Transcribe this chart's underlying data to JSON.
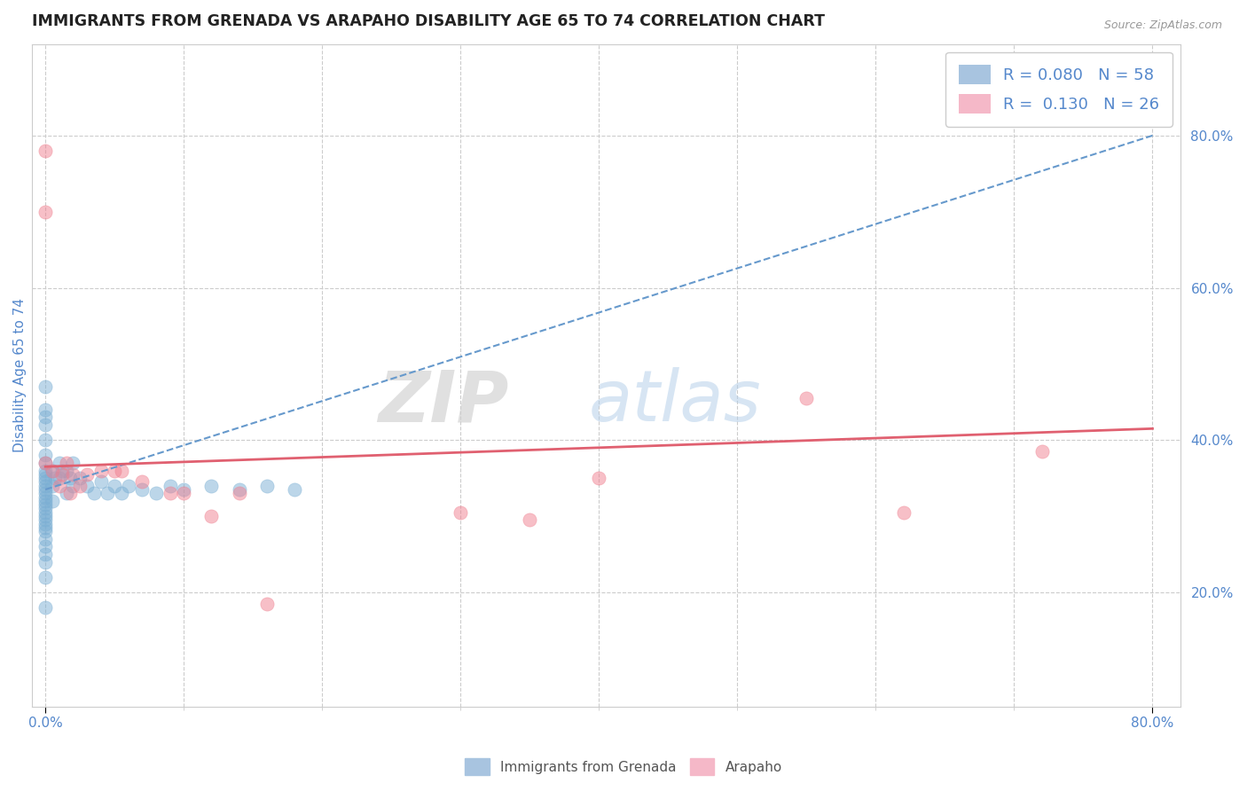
{
  "title": "IMMIGRANTS FROM GRENADA VS ARAPAHO DISABILITY AGE 65 TO 74 CORRELATION CHART",
  "source_text": "Source: ZipAtlas.com",
  "ylabel": "Disability Age 65 to 74",
  "xlim": [
    -0.01,
    0.82
  ],
  "ylim": [
    0.05,
    0.92
  ],
  "y_ticks": [
    0.2,
    0.4,
    0.6,
    0.8
  ],
  "y_tick_labels": [
    "20.0%",
    "40.0%",
    "60.0%",
    "80.0%"
  ],
  "x_tick_labels_bottom": [
    "0.0%",
    "80.0%"
  ],
  "watermark_zip": "ZIP",
  "watermark_atlas": "atlas",
  "legend_items": [
    {
      "label": "R = 0.080   N = 58",
      "color": "#a8c4e0"
    },
    {
      "label": "R =  0.130   N = 26",
      "color": "#f5b8c8"
    }
  ],
  "bottom_legend": [
    {
      "label": "Immigrants from Grenada",
      "color": "#a8c4e0"
    },
    {
      "label": "Arapaho",
      "color": "#f5b8c8"
    }
  ],
  "blue_scatter_x": [
    0.0,
    0.0,
    0.0,
    0.0,
    0.0,
    0.0,
    0.0,
    0.0,
    0.0,
    0.0,
    0.0,
    0.0,
    0.0,
    0.0,
    0.0,
    0.0,
    0.0,
    0.0,
    0.0,
    0.0,
    0.0,
    0.0,
    0.0,
    0.0,
    0.0,
    0.0,
    0.0,
    0.0,
    0.0,
    0.0,
    0.005,
    0.005,
    0.005,
    0.007,
    0.01,
    0.01,
    0.012,
    0.015,
    0.015,
    0.018,
    0.02,
    0.02,
    0.025,
    0.03,
    0.035,
    0.04,
    0.045,
    0.05,
    0.055,
    0.06,
    0.07,
    0.08,
    0.09,
    0.1,
    0.12,
    0.14,
    0.16,
    0.18
  ],
  "blue_scatter_y": [
    0.47,
    0.44,
    0.43,
    0.42,
    0.4,
    0.38,
    0.37,
    0.36,
    0.355,
    0.35,
    0.345,
    0.34,
    0.335,
    0.33,
    0.325,
    0.32,
    0.315,
    0.31,
    0.305,
    0.3,
    0.295,
    0.29,
    0.285,
    0.28,
    0.27,
    0.26,
    0.25,
    0.24,
    0.22,
    0.18,
    0.36,
    0.34,
    0.32,
    0.35,
    0.37,
    0.35,
    0.36,
    0.36,
    0.33,
    0.35,
    0.37,
    0.34,
    0.35,
    0.34,
    0.33,
    0.345,
    0.33,
    0.34,
    0.33,
    0.34,
    0.335,
    0.33,
    0.34,
    0.335,
    0.34,
    0.335,
    0.34,
    0.335
  ],
  "pink_scatter_x": [
    0.0,
    0.0,
    0.0,
    0.005,
    0.01,
    0.012,
    0.015,
    0.018,
    0.02,
    0.025,
    0.03,
    0.04,
    0.05,
    0.055,
    0.07,
    0.09,
    0.1,
    0.12,
    0.14,
    0.16,
    0.3,
    0.35,
    0.4,
    0.55,
    0.62,
    0.72
  ],
  "pink_scatter_y": [
    0.78,
    0.7,
    0.37,
    0.36,
    0.34,
    0.355,
    0.37,
    0.33,
    0.355,
    0.34,
    0.355,
    0.36,
    0.36,
    0.36,
    0.345,
    0.33,
    0.33,
    0.3,
    0.33,
    0.185,
    0.305,
    0.295,
    0.35,
    0.455,
    0.305,
    0.385
  ],
  "blue_trend_x0": 0.0,
  "blue_trend_x1": 0.8,
  "blue_trend_y0": 0.335,
  "blue_trend_y1": 0.8,
  "pink_trend_x0": 0.0,
  "pink_trend_x1": 0.8,
  "pink_trend_y0": 0.365,
  "pink_trend_y1": 0.415,
  "blue_scatter_color": "#7bafd4",
  "pink_scatter_color": "#f08090",
  "blue_trend_color": "#6699cc",
  "pink_trend_color": "#e06070",
  "background_color": "#ffffff",
  "grid_color": "#cccccc",
  "title_color": "#222222",
  "title_fontsize": 12.5,
  "axis_label_color": "#5588cc",
  "tick_label_color": "#5588cc"
}
